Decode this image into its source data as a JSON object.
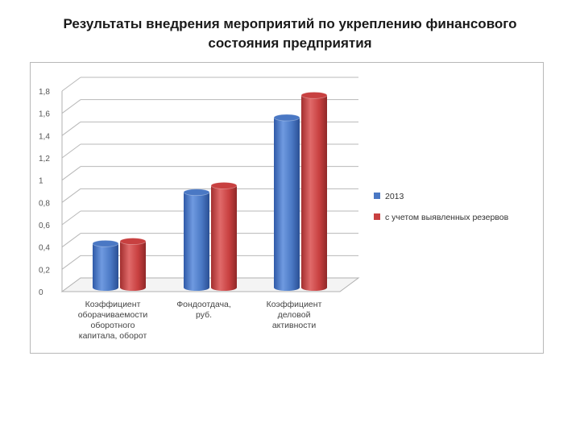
{
  "slide": {
    "title_line1": "Результаты внедрения мероприятий по укреплению финансового",
    "title_line2": "состояния предприятия"
  },
  "chart_data": {
    "type": "bar",
    "style": "3d-cylinder",
    "categories": [
      [
        "Коэффициент",
        "оборачиваемости",
        "оборотного",
        "капитала, оборот"
      ],
      [
        "Фондоотдача,",
        "руб."
      ],
      [
        "Коэффициент",
        "деловой",
        "активности"
      ]
    ],
    "series": [
      {
        "name": "2013",
        "color": "#4a78c4",
        "values": [
          0.37,
          0.83,
          1.5
        ]
      },
      {
        "name": "с учетом выявленных резервов",
        "color": "#c84040",
        "values": [
          0.39,
          0.89,
          1.7
        ]
      }
    ],
    "yticks": [
      "0",
      "0,2",
      "0,4",
      "0,6",
      "0,8",
      "1",
      "1,2",
      "1,4",
      "1,6",
      "1,8"
    ],
    "ylim": [
      0,
      1.8
    ],
    "grid": true,
    "legend_position": "right"
  }
}
